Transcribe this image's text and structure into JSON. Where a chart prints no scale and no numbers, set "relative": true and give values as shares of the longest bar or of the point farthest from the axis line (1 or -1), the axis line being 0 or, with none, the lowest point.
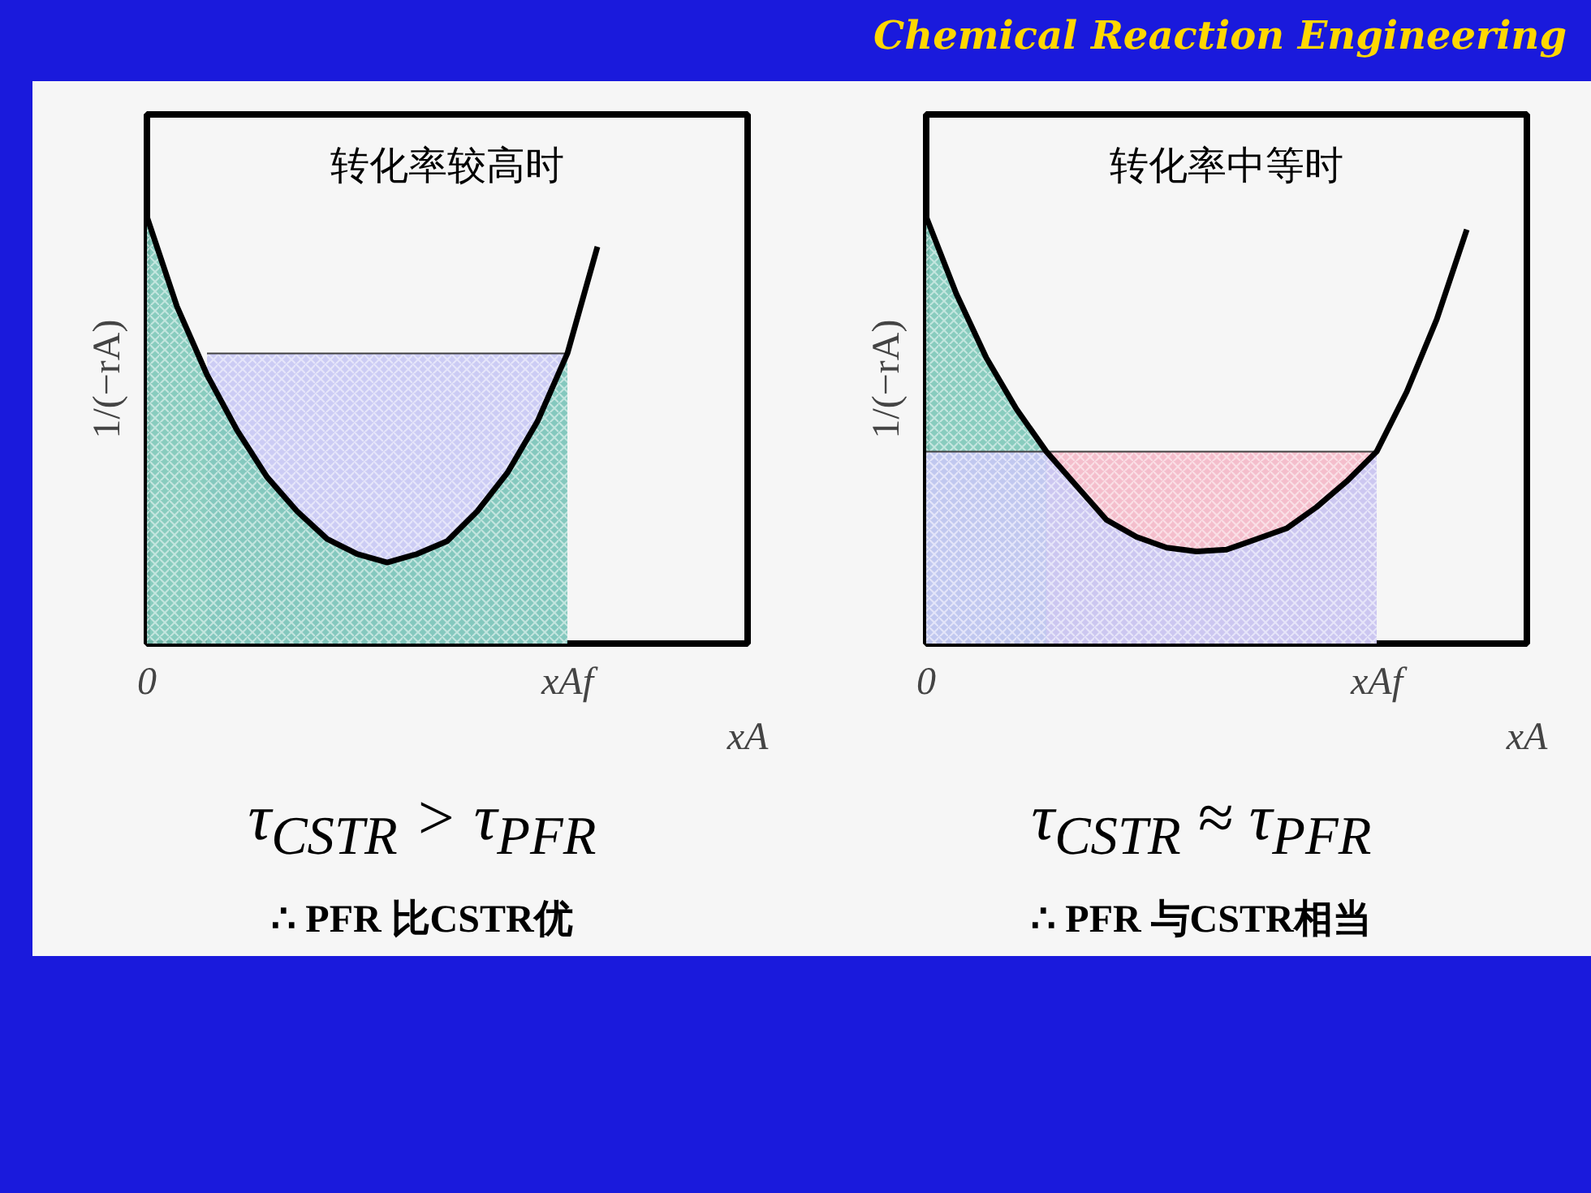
{
  "chart_data": [
    {
      "type": "line",
      "title": "转化率较高时",
      "xlabel": "xA",
      "ylabel": "1/(−rA)",
      "relative": true,
      "grid": false,
      "categories": [
        "0",
        null,
        null,
        null,
        null,
        null,
        null,
        null,
        null,
        null,
        null,
        null,
        null,
        null,
        "xAf",
        null,
        null,
        null,
        null,
        null,
        null
      ],
      "annotations": [
        "Chemical Reaction Engineering",
        "τ$_{CSTR}$ > τ$_{PFR}$",
        "∴ PFR 比CSTR优"
      ],
      "series": [
        {
          "type": "area",
          "color": "#c8c8f4",
          "values": [
            null,
            null,
            0.68,
            0.68,
            0.68,
            0.68,
            0.68,
            0.68,
            0.68,
            0.68,
            0.68,
            0.68,
            0.68,
            0.68,
            0.68,
            null,
            null,
            null,
            null,
            null,
            null
          ]
        },
        {
          "type": "area",
          "color": "#7cc8b8",
          "values": [
            1.0,
            0.79,
            0.63,
            0.5,
            0.39,
            0.31,
            0.245,
            0.21,
            0.19,
            0.21,
            0.24,
            0.31,
            0.4,
            0.52,
            0.68,
            null,
            null,
            null,
            null,
            null,
            null
          ]
        },
        {
          "color": "#000000",
          "values": [
            1.0,
            0.79,
            0.63,
            0.5,
            0.39,
            0.31,
            0.245,
            0.21,
            0.19,
            0.21,
            0.24,
            0.31,
            0.4,
            0.52,
            0.68,
            0.93,
            null,
            null,
            null,
            null,
            null
          ]
        }
      ]
    },
    {
      "type": "line",
      "title": "转化率中等时",
      "xlabel": "xA",
      "ylabel": "1/(−rA)",
      "relative": true,
      "grid": false,
      "categories": [
        "0",
        null,
        null,
        null,
        null,
        null,
        null,
        null,
        null,
        null,
        null,
        null,
        null,
        null,
        null,
        "xAf",
        null,
        null,
        null,
        null,
        null
      ],
      "annotations": [
        "τ$_{CSTR}$ ≈ τ$_{PFR}$",
        "∴ PFR 与CSTR相当"
      ],
      "series": [
        {
          "type": "area",
          "color": "#7cc8b8",
          "values": [
            1.0,
            0.82,
            0.67,
            0.55,
            0.45,
            null,
            null,
            null,
            null,
            null,
            null,
            null,
            null,
            null,
            null,
            null,
            null,
            null,
            null,
            null,
            null
          ]
        },
        {
          "type": "area",
          "color": "#f4b8c8",
          "values": [
            null,
            null,
            null,
            null,
            0.45,
            0.45,
            0.45,
            0.45,
            0.45,
            0.45,
            0.45,
            0.45,
            0.45,
            0.45,
            0.45,
            0.45,
            null,
            null,
            null,
            null,
            null
          ]
        },
        {
          "type": "area",
          "color": "#c8c8f4",
          "values": [
            0.45,
            0.45,
            0.45,
            0.45,
            0.45,
            0.37,
            0.29,
            0.25,
            0.225,
            0.216,
            0.22,
            0.245,
            0.27,
            0.32,
            0.38,
            0.45,
            null,
            null,
            null,
            null,
            null
          ]
        },
        {
          "color": "#000000",
          "values": [
            1.0,
            0.82,
            0.67,
            0.55,
            0.45,
            0.37,
            0.29,
            0.25,
            0.225,
            0.216,
            0.22,
            0.245,
            0.27,
            0.32,
            0.38,
            0.45,
            0.59,
            0.76,
            0.97,
            null,
            null
          ]
        }
      ]
    }
  ]
}
